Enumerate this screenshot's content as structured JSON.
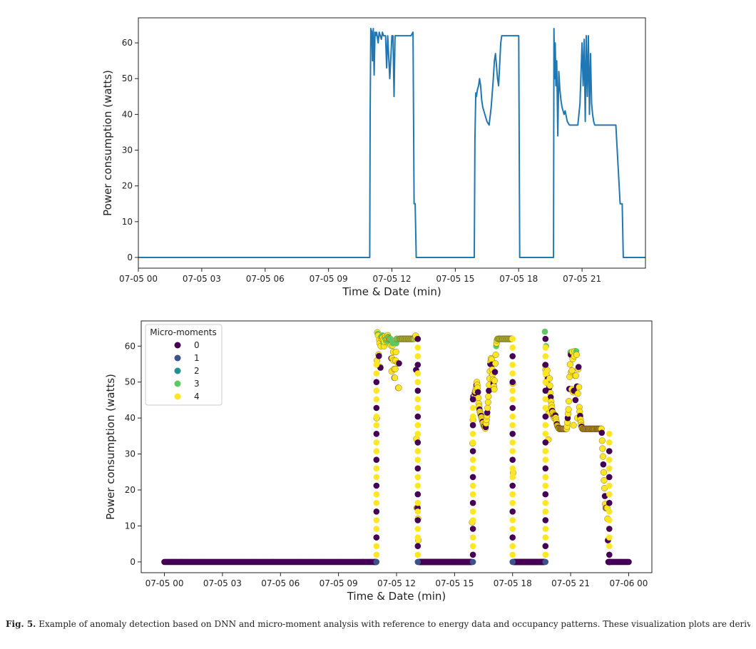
{
  "chart_data": [
    {
      "type": "line",
      "ylabel": "Power consumption (watts)",
      "xlabel": "Time & Date (min)",
      "xlim": [
        0,
        24
      ],
      "ylim": [
        -3,
        67
      ],
      "yticks": [
        0,
        10,
        20,
        30,
        40,
        50,
        60
      ],
      "xticks": [
        0,
        3,
        6,
        9,
        12,
        15,
        18,
        21
      ],
      "xtick_labels": [
        "07-05 00",
        "07-05 03",
        "07-05 06",
        "07-05 09",
        "07-05 12",
        "07-05 15",
        "07-05 18",
        "07-05 21"
      ],
      "color": "#1f77b4",
      "x": [
        0,
        10.95,
        10.97,
        11.0,
        11.05,
        11.08,
        11.12,
        11.16,
        11.2,
        11.23,
        11.27,
        11.3,
        11.35,
        11.4,
        11.45,
        11.5,
        11.55,
        11.6,
        11.7,
        11.75,
        11.8,
        11.9,
        12.0,
        12.05,
        12.1,
        12.15,
        12.2,
        12.25,
        12.3,
        12.35,
        12.4,
        12.45,
        12.5,
        12.6,
        12.8,
        12.9,
        13.0,
        13.05,
        13.1,
        13.15,
        13.2,
        15.9,
        15.93,
        15.97,
        16.0,
        16.05,
        16.1,
        16.15,
        16.2,
        16.25,
        16.3,
        16.4,
        16.5,
        16.6,
        16.7,
        16.8,
        16.85,
        16.9,
        17.0,
        17.05,
        17.1,
        17.15,
        17.2,
        17.3,
        17.5,
        17.8,
        17.9,
        18.0,
        18.05,
        19.65,
        19.67,
        19.7,
        19.73,
        19.76,
        19.8,
        19.85,
        19.9,
        19.95,
        20.0,
        20.05,
        20.1,
        20.15,
        20.2,
        20.3,
        20.4,
        20.5,
        20.6,
        20.7,
        20.8,
        20.9,
        21.0,
        21.05,
        21.1,
        21.15,
        21.2,
        21.25,
        21.3,
        21.35,
        21.4,
        21.45,
        21.5,
        21.55,
        21.6,
        21.7,
        21.8,
        21.9,
        22.0,
        22.2,
        22.4,
        22.6,
        22.8,
        22.9,
        22.95,
        23.0,
        23.05,
        24.0
      ],
      "y": [
        0,
        0,
        40,
        64,
        63,
        55,
        64,
        51,
        63,
        62,
        63,
        62,
        60,
        63,
        62,
        61,
        63,
        62,
        62,
        53,
        62,
        50,
        62,
        62,
        45,
        62,
        62,
        62,
        62,
        62,
        62,
        62,
        62,
        62,
        62,
        62,
        63,
        15,
        15,
        0,
        0,
        0,
        33,
        46,
        45,
        47,
        48,
        50,
        48,
        44,
        42,
        40,
        38,
        37,
        42,
        50,
        55,
        57,
        50,
        48,
        54,
        60,
        62,
        62,
        62,
        62,
        62,
        62,
        0,
        0,
        64,
        50,
        60,
        48,
        55,
        34,
        52,
        47,
        44,
        42,
        41,
        40,
        41,
        38,
        37,
        37,
        37,
        37,
        37,
        43,
        60,
        48,
        61,
        38,
        62,
        45,
        62,
        40,
        57,
        43,
        40,
        38,
        37,
        37,
        37,
        37,
        37,
        37,
        37,
        37,
        15,
        15,
        0,
        0,
        0,
        0
      ]
    },
    {
      "type": "scatter",
      "ylabel": "Power consumption (watts)",
      "xlabel": "Time & Date (min)",
      "xlim": [
        -1.2,
        25.2
      ],
      "ylim": [
        -3,
        67
      ],
      "yticks": [
        0,
        10,
        20,
        30,
        40,
        50,
        60
      ],
      "xticks": [
        0,
        3,
        6,
        9,
        12,
        15,
        18,
        21,
        24
      ],
      "xtick_labels": [
        "07-05 00",
        "07-05 03",
        "07-05 06",
        "07-05 09",
        "07-05 12",
        "07-05 15",
        "07-05 18",
        "07-05 21",
        "07-06 00"
      ],
      "series_note": "same energy trace as top panel, colored by detected micro-moment class",
      "legend": {
        "title": "Micro-moments",
        "position": "upper-left",
        "entries": [
          {
            "label": "0",
            "color": "#440154"
          },
          {
            "label": "1",
            "color": "#3b528b"
          },
          {
            "label": "2",
            "color": "#21918c"
          },
          {
            "label": "3",
            "color": "#5ec962"
          },
          {
            "label": "4",
            "color": "#fde725"
          }
        ]
      }
    }
  ],
  "caption": {
    "label": "Fig. 5.",
    "text": "Example of anomaly detection based on DNN and micro-moment analysis with reference to energy data and occupancy patterns. These visualization plots are derived using DRED dataset (for the case of a television): time-series energy consumption traces, and bottom) micro-moment detection scheme based on deep learning."
  }
}
